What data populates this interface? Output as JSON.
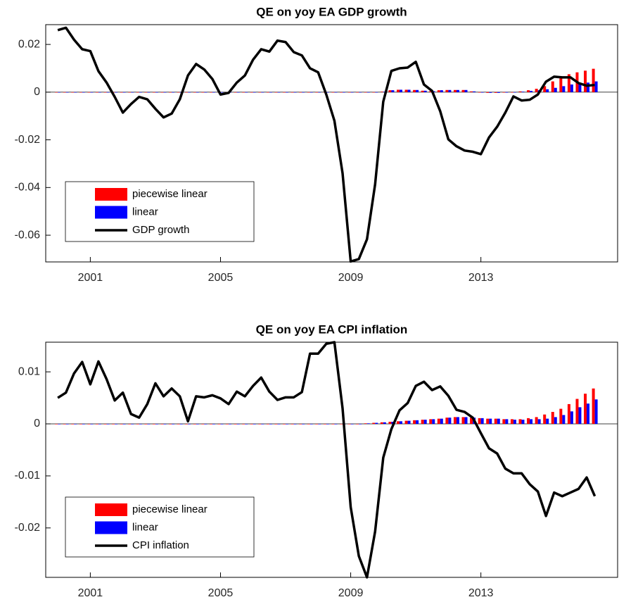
{
  "chart_data": [
    {
      "type": "bar",
      "title": "QE on yoy EA GDP growth",
      "x": [
        2000,
        2000.25,
        2000.5,
        2000.75,
        2001,
        2001.25,
        2001.5,
        2001.75,
        2002,
        2002.25,
        2002.5,
        2002.75,
        2003,
        2003.25,
        2003.5,
        2003.75,
        2004,
        2004.25,
        2004.5,
        2004.75,
        2005,
        2005.25,
        2005.5,
        2005.75,
        2006,
        2006.25,
        2006.5,
        2006.75,
        2007,
        2007.25,
        2007.5,
        2007.75,
        2008,
        2008.25,
        2008.5,
        2008.75,
        2009,
        2009.25,
        2009.5,
        2009.75,
        2010,
        2010.25,
        2010.5,
        2010.75,
        2011,
        2011.25,
        2011.5,
        2011.75,
        2012,
        2012.25,
        2012.5,
        2012.75,
        2013,
        2013.25,
        2013.5,
        2013.75,
        2014,
        2014.25,
        2014.5,
        2014.75,
        2015,
        2015.25,
        2015.5,
        2015.75,
        2016,
        2016.25,
        2016.5
      ],
      "series": [
        {
          "name": "piecewise linear",
          "type": "bar",
          "color": "#ff0000",
          "values": [
            0,
            0,
            0,
            0,
            0,
            0,
            0,
            0,
            0,
            0,
            0,
            0,
            0,
            0,
            0,
            0,
            0,
            0,
            0,
            0,
            0,
            0,
            0,
            0,
            0,
            0,
            0,
            0,
            0,
            0,
            0,
            0,
            0,
            0,
            0,
            0,
            0,
            0,
            0,
            0,
            0.0002,
            0.0008,
            0.001,
            0.001,
            0.0009,
            0.0006,
            0.0004,
            0.0008,
            0.0009,
            0.0009,
            0.0009,
            0.0003,
            -0.0002,
            -0.0003,
            -0.0003,
            -0.0002,
            -0.0001,
            0.0003,
            0.0008,
            0.0014,
            0.0025,
            0.0045,
            0.0058,
            0.0075,
            0.0083,
            0.009,
            0.0098
          ]
        },
        {
          "name": "linear",
          "type": "bar",
          "color": "#0000ff",
          "values": [
            0,
            0,
            0,
            0,
            0,
            0,
            0,
            0,
            0,
            0,
            0,
            0,
            0,
            0,
            0,
            0,
            0,
            0,
            0,
            0,
            0,
            0,
            0,
            0,
            0,
            0,
            0,
            0,
            0,
            0,
            0,
            0,
            0,
            0,
            0,
            0,
            0,
            0,
            0,
            0,
            0.0002,
            0.0008,
            0.001,
            0.001,
            0.0009,
            0.0006,
            0.0004,
            0.0008,
            0.0009,
            0.0009,
            0.0009,
            0.0003,
            -0.0002,
            -0.0003,
            -0.0003,
            -0.0002,
            -0.0001,
            0.0002,
            0.0005,
            0.0008,
            0.0012,
            0.0018,
            0.0025,
            0.0032,
            0.0037,
            0.004,
            0.0045
          ]
        },
        {
          "name": "GDP growth",
          "type": "line",
          "color": "#000000",
          "values": [
            0.026,
            0.027,
            0.022,
            0.018,
            0.0172,
            0.0088,
            0.004,
            -0.002,
            -0.0086,
            -0.005,
            -0.002,
            -0.003,
            -0.007,
            -0.0106,
            -0.009,
            -0.003,
            0.007,
            0.0118,
            0.0095,
            0.0055,
            -0.001,
            -0.0003,
            0.004,
            0.007,
            0.0136,
            0.018,
            0.017,
            0.0216,
            0.021,
            0.0168,
            0.0154,
            0.01,
            0.0083,
            -0.001,
            -0.012,
            -0.034,
            -0.071,
            -0.07,
            -0.0617,
            -0.0387,
            -0.004,
            0.0089,
            0.01,
            0.0103,
            0.0127,
            0.0032,
            0.0005,
            -0.008,
            -0.0198,
            -0.0227,
            -0.0245,
            -0.025,
            -0.026,
            -0.019,
            -0.0145,
            -0.0086,
            -0.0018,
            -0.0035,
            -0.0032,
            -0.001,
            0.0044,
            0.0065,
            0.0062,
            0.0062,
            0.0038,
            0.0027,
            0.003
          ]
        }
      ],
      "xlim": [
        1999.63,
        2017.2
      ],
      "xticks": [
        2001,
        2005,
        2009,
        2013
      ],
      "ylim": [
        -0.0712,
        0.0283
      ],
      "yticks": [
        -0.06,
        -0.04,
        -0.02,
        0,
        0.02
      ],
      "grid": false,
      "legend": "lower left"
    },
    {
      "type": "bar",
      "title": "QE on yoy EA CPI inflation",
      "x": [
        2000,
        2000.25,
        2000.5,
        2000.75,
        2001,
        2001.25,
        2001.5,
        2001.75,
        2002,
        2002.25,
        2002.5,
        2002.75,
        2003,
        2003.25,
        2003.5,
        2003.75,
        2004,
        2004.25,
        2004.5,
        2004.75,
        2005,
        2005.25,
        2005.5,
        2005.75,
        2006,
        2006.25,
        2006.5,
        2006.75,
        2007,
        2007.25,
        2007.5,
        2007.75,
        2008,
        2008.25,
        2008.5,
        2008.75,
        2009,
        2009.25,
        2009.5,
        2009.75,
        2010,
        2010.25,
        2010.5,
        2010.75,
        2011,
        2011.25,
        2011.5,
        2011.75,
        2012,
        2012.25,
        2012.5,
        2012.75,
        2013,
        2013.25,
        2013.5,
        2013.75,
        2014,
        2014.25,
        2014.5,
        2014.75,
        2015,
        2015.25,
        2015.5,
        2015.75,
        2016,
        2016.25,
        2016.5
      ],
      "series": [
        {
          "name": "piecewise linear",
          "type": "bar",
          "color": "#ff0000",
          "values": [
            0,
            0,
            0,
            0,
            0,
            0,
            0,
            0,
            0,
            0,
            0,
            0,
            0,
            0,
            0,
            0,
            0,
            0,
            0,
            0,
            0,
            0,
            0,
            0,
            0,
            0,
            0,
            0,
            0,
            0,
            0,
            0,
            0,
            0,
            0,
            0,
            0,
            0,
            0.0001,
            0.0002,
            0.0003,
            0.0004,
            0.0005,
            0.0006,
            0.0007,
            0.0008,
            0.0009,
            0.001,
            0.0012,
            0.0013,
            0.0013,
            0.0012,
            0.0011,
            0.001,
            0.001,
            0.0009,
            0.0009,
            0.0009,
            0.0011,
            0.0013,
            0.0018,
            0.0023,
            0.0029,
            0.0038,
            0.0048,
            0.0058,
            0.0068
          ]
        },
        {
          "name": "linear",
          "type": "bar",
          "color": "#0000ff",
          "values": [
            0,
            0,
            0,
            0,
            0,
            0,
            0,
            0,
            0,
            0,
            0,
            0,
            0,
            0,
            0,
            0,
            0,
            0,
            0,
            0,
            0,
            0,
            0,
            0,
            0,
            0,
            0,
            0,
            0,
            0,
            0,
            0,
            0,
            0,
            0,
            0,
            0,
            0,
            0.0001,
            0.0002,
            0.0003,
            0.0004,
            0.0005,
            0.0006,
            0.0007,
            0.0008,
            0.0009,
            0.001,
            0.0012,
            0.0013,
            0.0013,
            0.0012,
            0.0011,
            0.001,
            0.001,
            0.0009,
            0.0008,
            0.0008,
            0.0009,
            0.0009,
            0.001,
            0.0013,
            0.0017,
            0.0024,
            0.0032,
            0.0039,
            0.0047
          ]
        },
        {
          "name": "CPI inflation",
          "type": "line",
          "color": "#000000",
          "values": [
            0.005,
            0.006,
            0.0097,
            0.0119,
            0.0076,
            0.012,
            0.0086,
            0.0045,
            0.006,
            0.0019,
            0.0012,
            0.0038,
            0.0078,
            0.0053,
            0.0068,
            0.0053,
            0.0005,
            0.0053,
            0.0051,
            0.0055,
            0.0049,
            0.0038,
            0.0062,
            0.0053,
            0.0073,
            0.0089,
            0.0062,
            0.0046,
            0.0051,
            0.0051,
            0.0061,
            0.0135,
            0.0135,
            0.0154,
            0.0157,
            0.003,
            -0.016,
            -0.0254,
            -0.0295,
            -0.0207,
            -0.0065,
            -0.001,
            0.0026,
            0.004,
            0.0073,
            0.0081,
            0.0065,
            0.0072,
            0.0054,
            0.0027,
            0.0023,
            0.0012,
            -0.0018,
            -0.0047,
            -0.0057,
            -0.0086,
            -0.0095,
            -0.0095,
            -0.0116,
            -0.013,
            -0.0177,
            -0.0132,
            -0.0139,
            -0.0132,
            -0.0125,
            -0.0103,
            -0.0139
          ]
        }
      ],
      "xlim": [
        1999.63,
        2017.2
      ],
      "xticks": [
        2001,
        2005,
        2009,
        2013
      ],
      "ylim": [
        -0.0295,
        0.0157
      ],
      "yticks": [
        -0.02,
        -0.01,
        0,
        0.01
      ],
      "grid": false,
      "legend": "lower left"
    }
  ]
}
